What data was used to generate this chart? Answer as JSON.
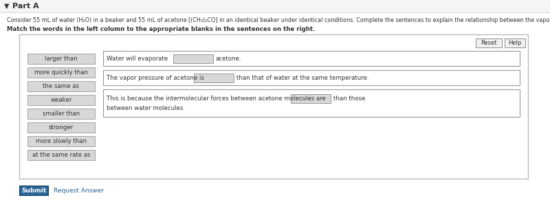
{
  "title": "Part A",
  "description": "Consider 55 mL of water (H₂O) in a beaker and 55 mL of acetone [(CH₃)₂CO] in an identical beaker under identical conditions. Complete the sentences to explain the relationship between the vapor pressure of water and acetone.",
  "instruction": "Match the words in the left column to the appropriate blanks in the sentences on the right.",
  "left_buttons": [
    "larger than",
    "more quickly than",
    "the same as",
    "weaker",
    "smaller than",
    "stronger",
    "more slowly than",
    "at the same rate as"
  ],
  "sentence1_pre": "Water will evaporate",
  "sentence1_post": "acetone.",
  "sentence2_pre": "The vapor pressure of acetone is",
  "sentence2_post": "than that of water at the same temperature.",
  "sentence3_pre": "This is because the intermolecular forces between acetone molecules are",
  "sentence3_post": "than those",
  "sentence3_last": "between water molecules.",
  "reset_label": "Reset",
  "help_label": "Help",
  "submit_label": "Submit",
  "request_label": "Request Answer",
  "bg_color": "#ebebeb",
  "box_bg": "#ffffff",
  "button_bg": "#d8d8d8",
  "button_border": "#aaaaaa",
  "box_border": "#999999",
  "blank_bg": "#d8d8d8",
  "blank_border": "#999999",
  "text_color": "#333333",
  "submit_bg": "#2a6496",
  "submit_text": "#ffffff",
  "link_color": "#2a6496",
  "header_bg": "#f5f5f5",
  "header_border": "#dddddd"
}
